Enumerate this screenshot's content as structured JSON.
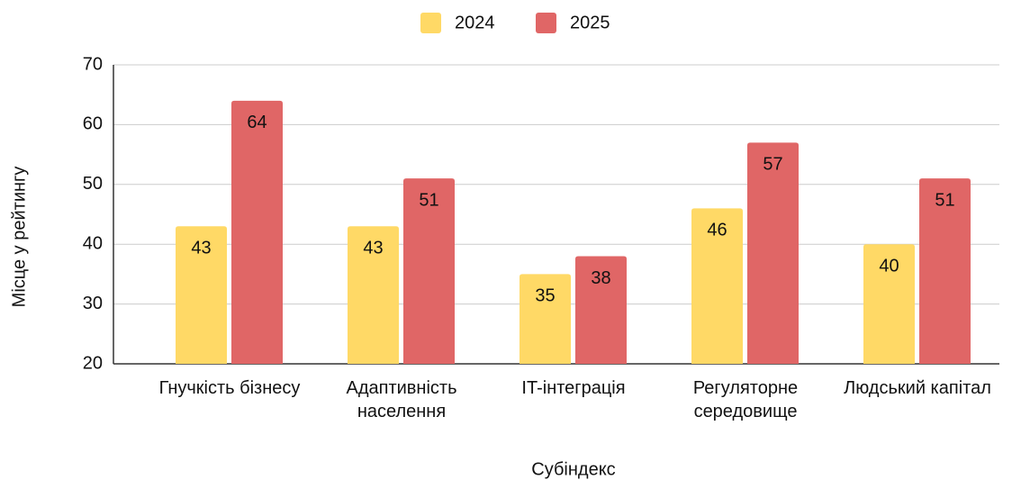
{
  "chart_data": {
    "type": "bar",
    "categories": [
      "Гнучкість бізнесу",
      "Адаптивність населення",
      "IT-інтеграція",
      "Регуляторне середовище",
      "Людський капітал"
    ],
    "series": [
      {
        "name": "2024",
        "color": "#ffd966",
        "values": [
          43,
          43,
          35,
          46,
          40
        ]
      },
      {
        "name": "2025",
        "color": "#e06666",
        "values": [
          64,
          51,
          38,
          57,
          51
        ]
      }
    ],
    "x_label": "Субіндекс",
    "y_label": "Місце у рейтингу",
    "ylim": [
      20,
      70
    ],
    "yticks": [
      20,
      30,
      40,
      50,
      60,
      70
    ],
    "grid": true,
    "legend": "top"
  }
}
